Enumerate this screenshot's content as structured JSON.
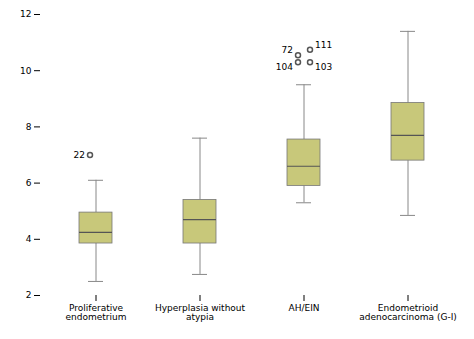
{
  "chart_data": {
    "type": "box",
    "categories": [
      "Proliferative\nendometrium",
      "Hyperplasia without\natypia",
      "AH/EIN",
      "Endometrioid\nadenocarcinoma (G-I)"
    ],
    "color": "#c8c87a",
    "ylim": [
      2,
      12
    ],
    "yticks": [
      2,
      4,
      6,
      8,
      10,
      12
    ],
    "grid": false,
    "boxes": [
      {
        "whislo": 2.5,
        "q1": 3.85,
        "med": 4.25,
        "q3": 4.95,
        "whishi": 6.1,
        "fliers": [
          7.0
        ],
        "flier_labels": [
          "22"
        ]
      },
      {
        "whislo": 2.75,
        "q1": 3.85,
        "med": 4.7,
        "q3": 5.4,
        "whishi": 7.6,
        "fliers": [],
        "flier_labels": []
      },
      {
        "whislo": 5.3,
        "q1": 5.9,
        "med": 6.6,
        "q3": 7.55,
        "whishi": 9.5,
        "fliers": [
          10.55,
          10.75,
          10.3,
          10.3
        ],
        "flier_labels": [
          "72",
          "111",
          "104",
          "103"
        ]
      },
      {
        "whislo": 4.85,
        "q1": 6.8,
        "med": 7.7,
        "q3": 8.85,
        "whishi": 11.4,
        "fliers": [],
        "flier_labels": []
      }
    ]
  }
}
